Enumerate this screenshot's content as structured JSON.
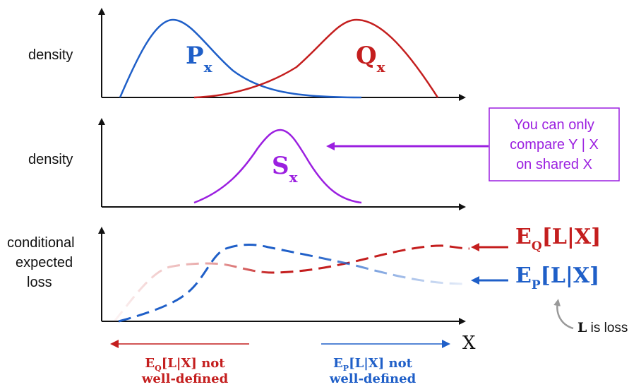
{
  "panels": {
    "top": {
      "ylabel": "density",
      "curve_p": "P",
      "curve_p_sub": "x",
      "curve_q": "Q",
      "curve_q_sub": "x"
    },
    "middle": {
      "ylabel": "density",
      "curve_s": "S",
      "curve_s_sub": "x"
    },
    "bottom": {
      "ylabel_line1": "conditional",
      "ylabel_line2": "expected",
      "ylabel_line3": "loss",
      "xlabel": "X"
    }
  },
  "callout": {
    "line1": "You can only",
    "line2": "compare Y | X",
    "line3": "on shared X"
  },
  "legend": {
    "q_label_e": "E",
    "q_label_sub": "Q",
    "q_label_rest": "[L|X]",
    "p_label_e": "E",
    "p_label_sub": "P",
    "p_label_rest": "[L|X]",
    "loss_note_bold": "L",
    "loss_note_rest": " is loss"
  },
  "ranges": {
    "left_e": "E",
    "left_sub": "Q",
    "left_rest": "[L|X] not",
    "left_line2": "well-defined",
    "right_e": "E",
    "right_sub": "P",
    "right_rest": "[L|X] not",
    "right_line2": "well-defined"
  },
  "colors": {
    "p": "#1f5fc8",
    "q": "#c41e1e",
    "s": "#9b1fe0",
    "axis": "#111111",
    "note_arrow": "#999999"
  }
}
